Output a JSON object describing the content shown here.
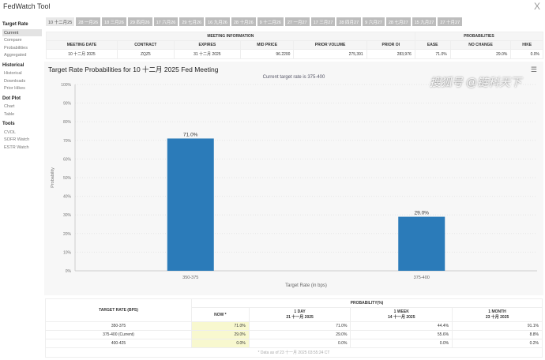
{
  "app": {
    "title": "FedWatch Tool",
    "close_icon": "X"
  },
  "sidebar": [
    {
      "heading": "Target Rate",
      "items": [
        "Current",
        "Compare",
        "Probabilities",
        "Aggregated"
      ]
    },
    {
      "heading": "Historical",
      "items": [
        "Historical",
        "Downloads",
        "Prior Hikes"
      ]
    },
    {
      "heading": "Dot Plot",
      "items": [
        "Chart",
        "Table"
      ]
    },
    {
      "heading": "Tools",
      "items": [
        "CVOL",
        "SOFR Watch",
        "ESTR Watch"
      ]
    }
  ],
  "tabs": [
    "10 十二月25",
    "28 一月26",
    "18 三月26",
    "29 四月26",
    "17 六月26",
    "29 七月26",
    "16 九月26",
    "28 十月26",
    "9 十二月26",
    "27 一月27",
    "17 三月27",
    "28 四月27",
    "9 六月27",
    "28 七月27",
    "15 九月27",
    "27 十月27"
  ],
  "info": {
    "group1": "MEETING INFORMATION",
    "group2": "PROBABILITIES",
    "headers": [
      "MEETING DATE",
      "CONTRACT",
      "EXPIRES",
      "MID PRICE",
      "PRIOR VOLUME",
      "PRIOR OI",
      "EASE",
      "NO CHANGE",
      "HIKE"
    ],
    "row": [
      "10 十二月 2025",
      "ZQZ5",
      "31 十二月 2025",
      "96.2200",
      "275,391",
      "283,976",
      "71.0%",
      "29.0%",
      "0.0%"
    ]
  },
  "chart": {
    "title": "Target Rate Probabilities for 10 十二月 2025 Fed Meeting",
    "subtitle": "Current target rate is 375-400"
  },
  "chart_data": {
    "type": "bar",
    "categories": [
      "350-375",
      "375-400"
    ],
    "values": [
      71.0,
      29.0
    ],
    "data_labels": [
      "71.0%",
      "29.0%"
    ],
    "xlabel": "Target Rate (in bps)",
    "ylabel": "Probability",
    "ylim": [
      0,
      100
    ],
    "yticks": [
      "0%",
      "10%",
      "20%",
      "30%",
      "40%",
      "50%",
      "60%",
      "70%",
      "80%",
      "90%",
      "100%"
    ],
    "color": "#2b7bb9",
    "grid": true
  },
  "table": {
    "h_rate": "TARGET RATE (BPS)",
    "h_prob": "PROBABILITY(%)",
    "h_now": "NOW *",
    "cols": [
      {
        "l": "1 DAY",
        "d": "21 十一月 2025"
      },
      {
        "l": "1 WEEK",
        "d": "14 十一月 2025"
      },
      {
        "l": "1 MONTH",
        "d": "23 十月 2025"
      }
    ],
    "rows": [
      [
        "350-375",
        "71.0%",
        "71.0%",
        "44.4%",
        "91.1%"
      ],
      [
        "375-400 (Current)",
        "29.0%",
        "29.0%",
        "55.6%",
        "8.8%"
      ],
      [
        "400-425",
        "0.0%",
        "0.0%",
        "0.0%",
        "0.2%"
      ]
    ],
    "footnote": "* Data as of 23 十一月 2025 03:55:24 CT"
  },
  "watermark": "搜狐号 @链科天下"
}
